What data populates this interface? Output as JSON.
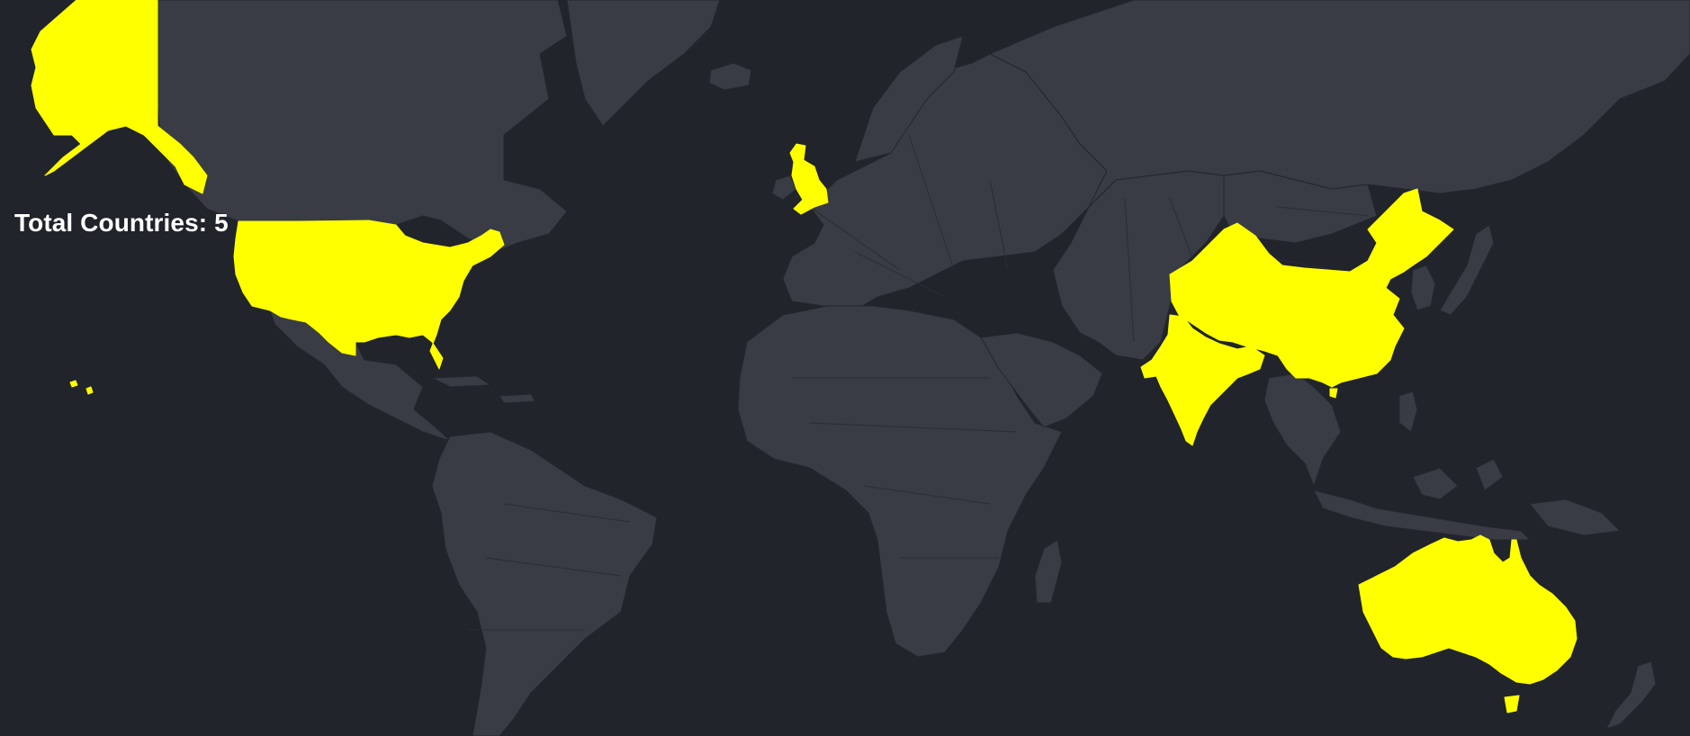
{
  "map": {
    "total_label": "Total Countries:",
    "total_count": "5",
    "highlighted_countries": [
      "United States",
      "United Kingdom",
      "China",
      "India",
      "Australia"
    ],
    "colors": {
      "ocean": "#21242b",
      "land": "#393c45",
      "border": "#23262d",
      "highlight": "#ffff00",
      "label": "#ffffff"
    }
  }
}
